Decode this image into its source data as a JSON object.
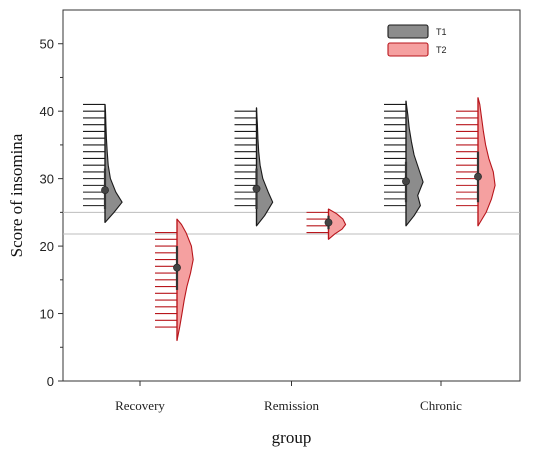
{
  "chart_data": {
    "type": "violin",
    "xlabel": "group",
    "ylabel": "Score of insomina",
    "ylim": [
      0,
      55
    ],
    "yticks": [
      0,
      10,
      20,
      30,
      40,
      50
    ],
    "categories": [
      "Recovery",
      "Remission",
      "Chronic"
    ],
    "reference_lines": [
      25,
      21.8
    ],
    "legend_position": "top-right",
    "series": [
      {
        "name": "T1",
        "color": "#8c8c8c",
        "edge": "#1a1a1a",
        "groups": [
          {
            "category": "Recovery",
            "min": 23.5,
            "max": 41,
            "mean": 28.3,
            "ci": [
              25.5,
              31.5
            ],
            "rug": [
              26,
              27,
              28,
              29,
              30,
              31,
              32,
              33,
              34,
              35,
              36,
              37,
              38,
              39,
              40,
              41
            ],
            "density": [
              [
                23.5,
                0
              ],
              [
                25,
                0.5
              ],
              [
                26.5,
                0.95
              ],
              [
                28,
                0.6
              ],
              [
                30,
                0.3
              ],
              [
                32,
                0.18
              ],
              [
                34,
                0.12
              ],
              [
                36,
                0.08
              ],
              [
                38,
                0.05
              ],
              [
                40,
                0.03
              ],
              [
                41,
                0
              ]
            ]
          },
          {
            "category": "Remission",
            "min": 23,
            "max": 40.5,
            "mean": 28.5,
            "ci": [
              25.5,
              31.5
            ],
            "rug": [
              26,
              27,
              28,
              29,
              30,
              31,
              32,
              33,
              34,
              35,
              36,
              37,
              38,
              39,
              40
            ],
            "density": [
              [
                23,
                0
              ],
              [
                24.5,
                0.45
              ],
              [
                26.5,
                0.9
              ],
              [
                28,
                0.65
              ],
              [
                30,
                0.35
              ],
              [
                32,
                0.2
              ],
              [
                34,
                0.12
              ],
              [
                36,
                0.08
              ],
              [
                38,
                0.05
              ],
              [
                40.5,
                0
              ]
            ]
          },
          {
            "category": "Chronic",
            "min": 23,
            "max": 41.5,
            "mean": 29.6,
            "ci": [
              26.5,
              32.5
            ],
            "rug": [
              26,
              27,
              28,
              29,
              30,
              31,
              32,
              33,
              34,
              35,
              36,
              37,
              38,
              39,
              40,
              41
            ],
            "density": [
              [
                23,
                0
              ],
              [
                24.5,
                0.45
              ],
              [
                26,
                0.8
              ],
              [
                27.5,
                0.65
              ],
              [
                29.5,
                0.95
              ],
              [
                31.5,
                0.7
              ],
              [
                33.5,
                0.45
              ],
              [
                35.5,
                0.3
              ],
              [
                37.5,
                0.18
              ],
              [
                39.5,
                0.1
              ],
              [
                41.5,
                0
              ]
            ]
          }
        ]
      },
      {
        "name": "T2",
        "color": "#f5a0a0",
        "edge": "#b8161c",
        "groups": [
          {
            "category": "Recovery",
            "min": 6,
            "max": 24,
            "mean": 16.8,
            "ci": [
              13.5,
              20
            ],
            "rug": [
              8,
              9,
              10,
              11,
              12,
              13,
              14,
              15,
              16,
              17,
              18,
              19,
              20,
              21,
              22
            ],
            "density": [
              [
                6,
                0
              ],
              [
                8,
                0.15
              ],
              [
                10,
                0.28
              ],
              [
                12,
                0.4
              ],
              [
                14,
                0.55
              ],
              [
                16,
                0.75
              ],
              [
                18,
                0.9
              ],
              [
                20,
                0.8
              ],
              [
                22,
                0.5
              ],
              [
                23.2,
                0.25
              ],
              [
                24,
                0
              ]
            ]
          },
          {
            "category": "Remission",
            "min": 21,
            "max": 25.5,
            "mean": 23.5,
            "ci": [
              22.5,
              24.5
            ],
            "rug": [
              22,
              23,
              24,
              25
            ],
            "density": [
              [
                21,
                0
              ],
              [
                21.8,
                0.35
              ],
              [
                22.5,
                0.75
              ],
              [
                23.2,
                0.95
              ],
              [
                24,
                0.8
              ],
              [
                24.8,
                0.45
              ],
              [
                25.5,
                0
              ]
            ]
          },
          {
            "category": "Chronic",
            "min": 23,
            "max": 42,
            "mean": 30.3,
            "ci": [
              26.5,
              34
            ],
            "rug": [
              26,
              27,
              28,
              29,
              30,
              31,
              32,
              33,
              34,
              35,
              36,
              37,
              38,
              39,
              40
            ],
            "density": [
              [
                23,
                0
              ],
              [
                25,
                0.45
              ],
              [
                27,
                0.75
              ],
              [
                29,
                0.95
              ],
              [
                31,
                0.85
              ],
              [
                33,
                0.6
              ],
              [
                35,
                0.42
              ],
              [
                37,
                0.3
              ],
              [
                39,
                0.2
              ],
              [
                41,
                0.1
              ],
              [
                42,
                0
              ]
            ]
          }
        ]
      }
    ]
  }
}
